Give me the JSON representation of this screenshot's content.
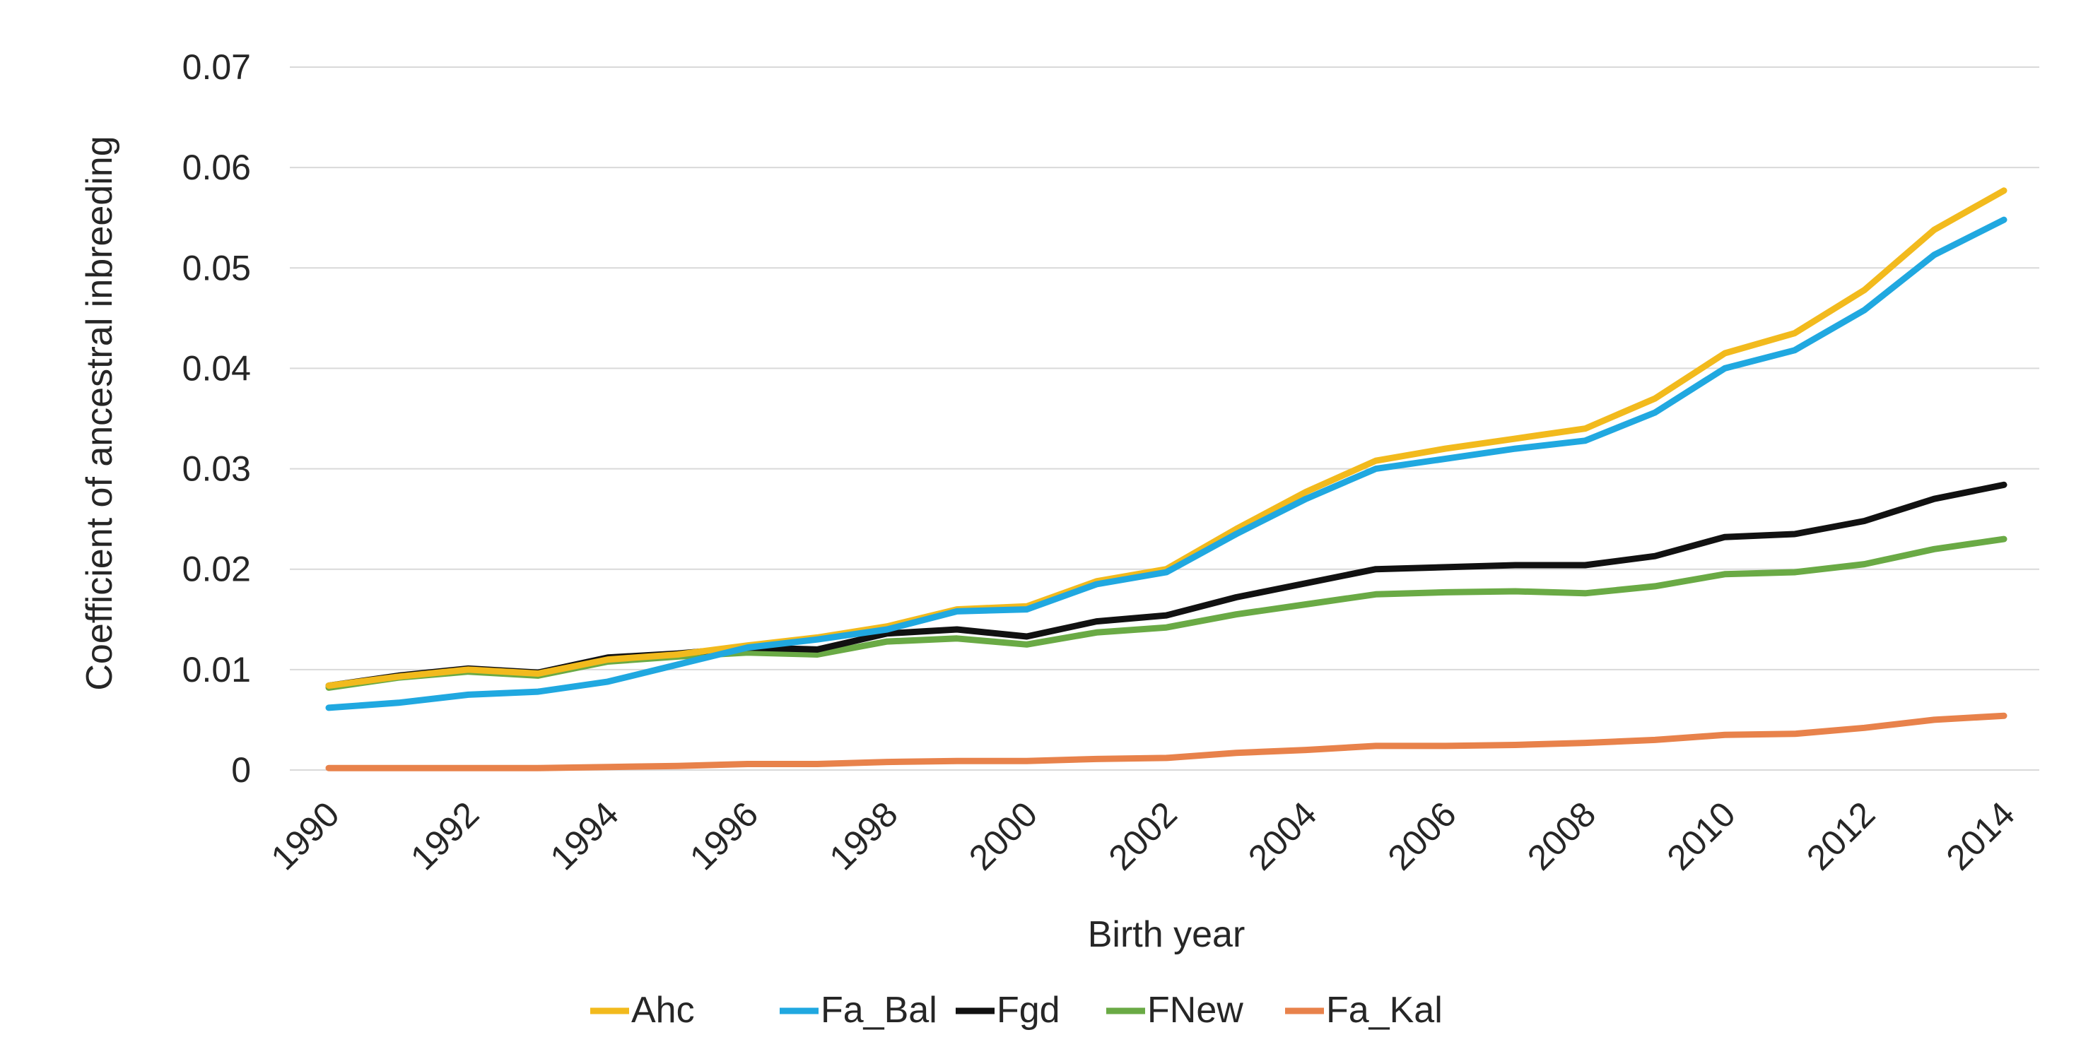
{
  "chart_data": {
    "type": "line",
    "title": "",
    "xlabel": "Birth year",
    "ylabel": "Coefficient of ancestral inbreeding",
    "ylim": [
      0,
      0.07
    ],
    "grid": true,
    "legend_position": "bottom",
    "x": [
      1990,
      1991,
      1992,
      1993,
      1994,
      1995,
      1996,
      1997,
      1998,
      1999,
      2000,
      2001,
      2002,
      2003,
      2004,
      2005,
      2006,
      2007,
      2008,
      2009,
      2010,
      2011,
      2012,
      2013,
      2014
    ],
    "x_tick_labels": [
      "1990",
      "1992",
      "1994",
      "1996",
      "1998",
      "2000",
      "2002",
      "2004",
      "2006",
      "2008",
      "2010",
      "2012",
      "2014"
    ],
    "y_tick_labels": [
      "0",
      "0.01",
      "0.02",
      "0.03",
      "0.04",
      "0.05",
      "0.06",
      "0.07"
    ],
    "y_ticks": [
      0,
      0.01,
      0.02,
      0.03,
      0.04,
      0.05,
      0.06,
      0.07
    ],
    "series": [
      {
        "name": "Ahc",
        "color": "#F2BA1D",
        "values": [
          0.0084,
          0.0093,
          0.01,
          0.0096,
          0.011,
          0.0115,
          0.0124,
          0.0132,
          0.0143,
          0.016,
          0.0163,
          0.0188,
          0.02,
          0.024,
          0.0277,
          0.0308,
          0.032,
          0.033,
          0.034,
          0.037,
          0.0415,
          0.0435,
          0.0478,
          0.0538,
          0.0577
        ]
      },
      {
        "name": "Fa_Bal",
        "color": "#20A8E0",
        "values": [
          0.0062,
          0.0067,
          0.0075,
          0.0078,
          0.0088,
          0.0105,
          0.0122,
          0.013,
          0.014,
          0.0158,
          0.016,
          0.0185,
          0.0197,
          0.0235,
          0.027,
          0.03,
          0.031,
          0.032,
          0.0328,
          0.0356,
          0.04,
          0.0418,
          0.0458,
          0.0513,
          0.0548
        ]
      },
      {
        "name": "Fgd",
        "color": "#111111",
        "values": [
          0.0084,
          0.0094,
          0.0101,
          0.0097,
          0.0112,
          0.0116,
          0.0122,
          0.012,
          0.0136,
          0.014,
          0.0133,
          0.0148,
          0.0154,
          0.0172,
          0.0186,
          0.02,
          0.0202,
          0.0204,
          0.0204,
          0.0213,
          0.0232,
          0.0235,
          0.0248,
          0.027,
          0.0284
        ]
      },
      {
        "name": "FNew",
        "color": "#6AAA45",
        "values": [
          0.0082,
          0.0092,
          0.0098,
          0.0094,
          0.0108,
          0.0113,
          0.0117,
          0.0115,
          0.0128,
          0.0131,
          0.0125,
          0.0137,
          0.0142,
          0.0155,
          0.0165,
          0.0175,
          0.0177,
          0.0178,
          0.0176,
          0.0183,
          0.0195,
          0.0197,
          0.0205,
          0.022,
          0.023
        ]
      },
      {
        "name": "Fa_Kal",
        "color": "#E8824B",
        "values": [
          0.0002,
          0.0002,
          0.0002,
          0.0002,
          0.0003,
          0.0004,
          0.0006,
          0.0006,
          0.0008,
          0.0009,
          0.0009,
          0.0011,
          0.0012,
          0.0017,
          0.002,
          0.0024,
          0.0024,
          0.0025,
          0.0027,
          0.003,
          0.0035,
          0.0036,
          0.0042,
          0.005,
          0.0054
        ]
      }
    ]
  }
}
